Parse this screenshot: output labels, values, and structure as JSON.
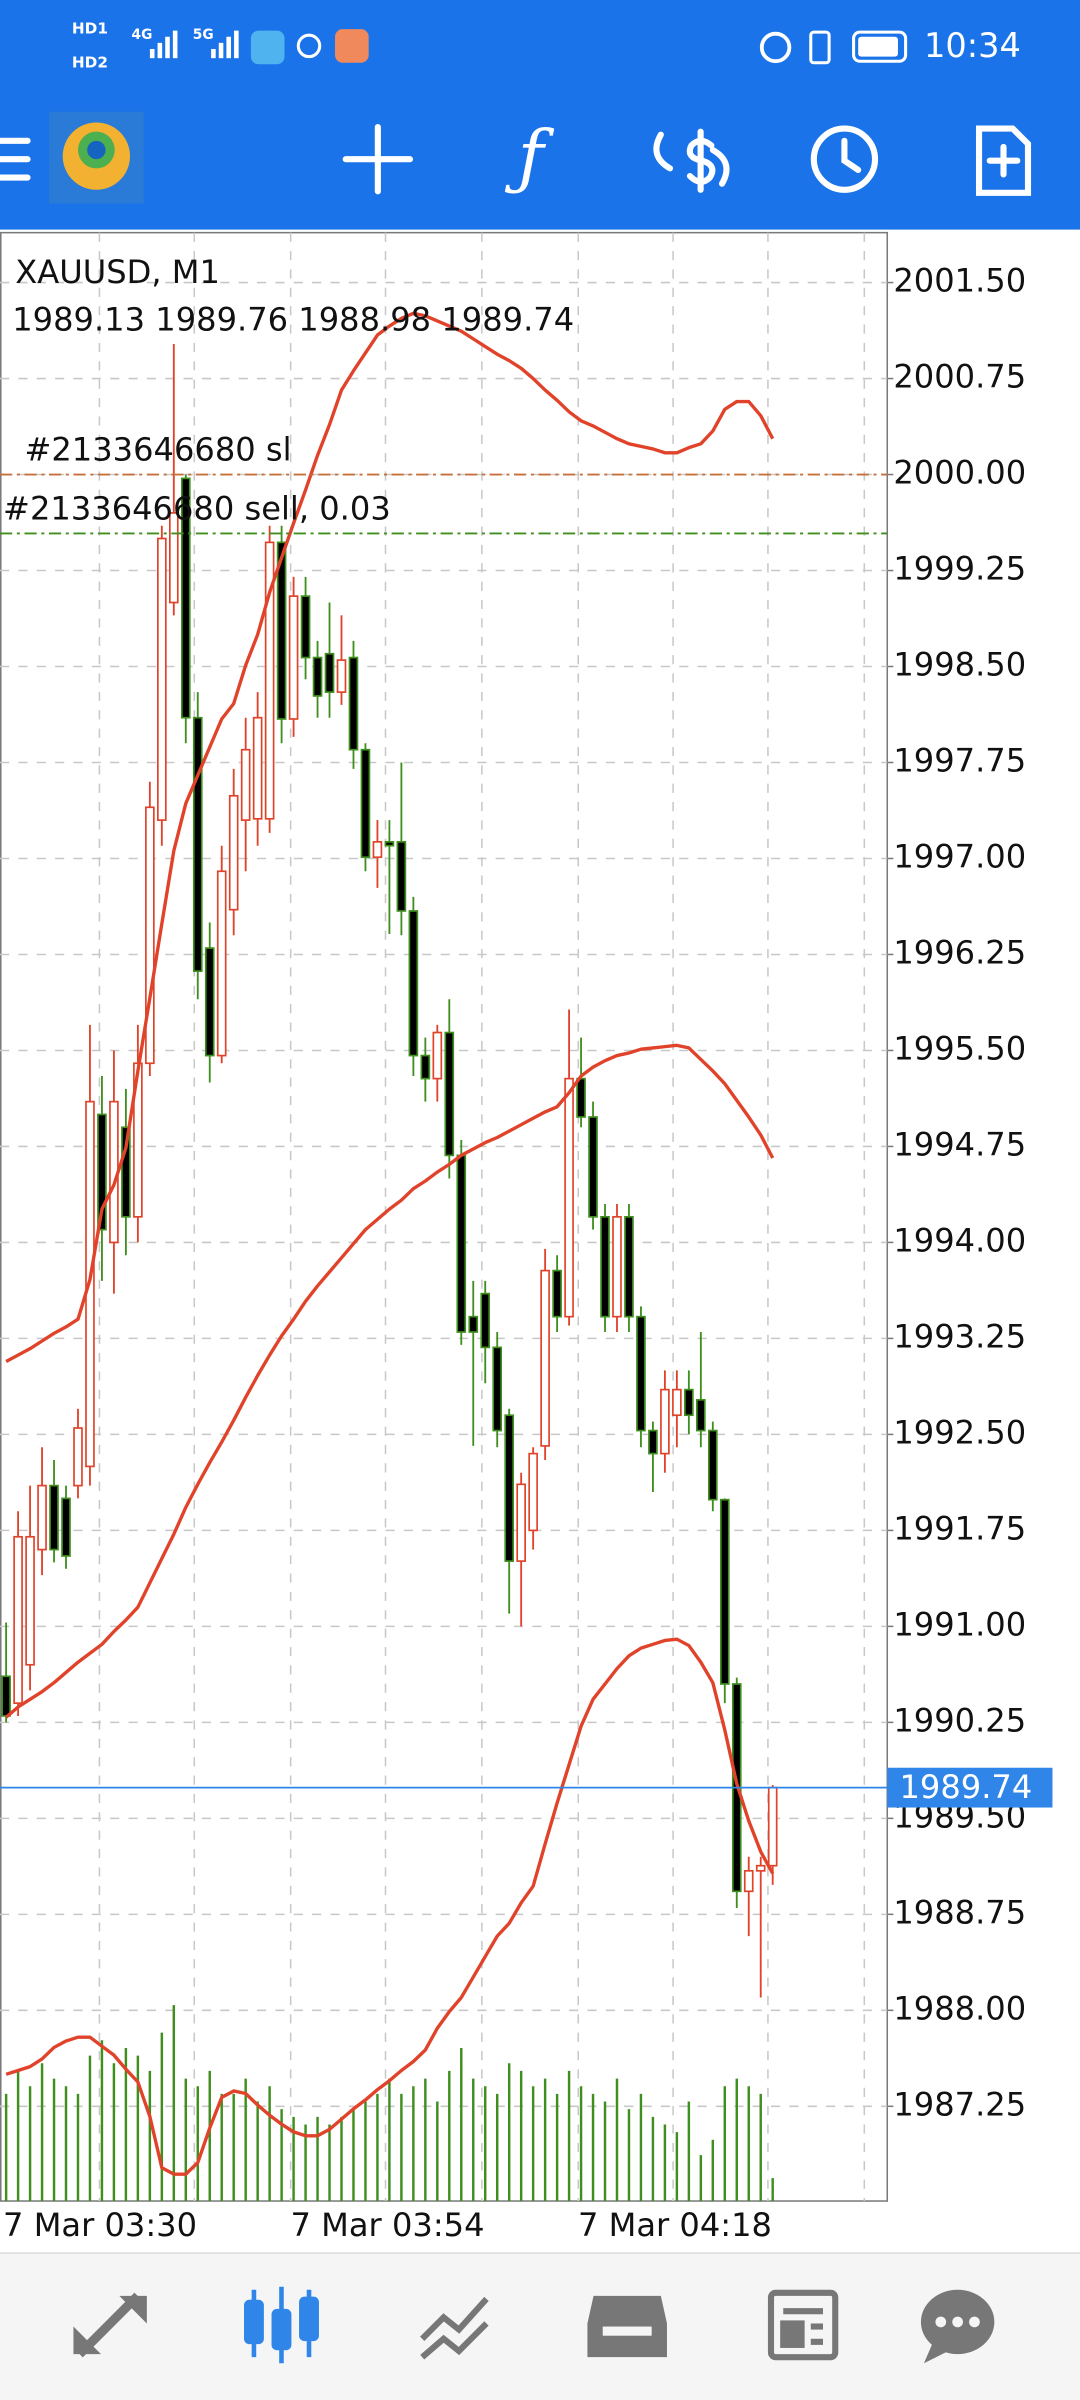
{
  "status_bar": {
    "sim_labels": [
      "HD1",
      "HD2"
    ],
    "network_labels": [
      "4G",
      "5G"
    ],
    "time": "10:34"
  },
  "chart_data": {
    "type": "candlestick",
    "title": "XAUUSD, M1",
    "x_tick_labels": [
      "7 Mar 03:30",
      "7 Mar 03:54",
      "7 Mar 04:18"
    ],
    "open": [
      1990.61,
      1990.4,
      1990.7,
      1991.6,
      1992.1,
      1992.0,
      1992.1,
      1992.25,
      1995.0,
      1994.0,
      1994.9,
      1994.2,
      1995.4,
      1997.3,
      1999.0,
      1999.97,
      1998.1,
      1996.3,
      1995.46,
      1996.6,
      1997.3,
      1997.31,
      1997.31,
      1999.47,
      1998.09,
      1999.05,
      1998.57,
      1998.6,
      1998.3,
      1998.57,
      1997.85,
      1997.01,
      1997.13,
      1997.13,
      1996.59,
      1995.46,
      1995.28,
      1995.64,
      1994.68,
      1993.42,
      1993.6,
      1993.18,
      1992.65,
      1991.51,
      1991.75,
      1992.41,
      1993.78,
      1993.42,
      1995.28,
      1994.98,
      1994.2,
      1993.42,
      1994.2,
      1993.42,
      1992.53,
      1992.35,
      1992.65,
      1992.85,
      1992.77,
      1992.53,
      1991.99,
      1990.55,
      1988.93,
      1989.09,
      1989.13
    ],
    "high": [
      1991.03,
      1991.9,
      1992.1,
      1992.4,
      1992.3,
      1992.1,
      1992.7,
      1995.7,
      1995.3,
      1995.5,
      1995.2,
      1995.7,
      1997.6,
      1999.6,
      2001.02,
      2000.0,
      1998.3,
      1996.5,
      1997.1,
      1997.7,
      1998.1,
      1998.3,
      1999.6,
      1999.6,
      1999.2,
      1999.2,
      1998.7,
      1999.0,
      1998.9,
      1998.7,
      1997.9,
      1997.3,
      1997.3,
      1997.75,
      1996.7,
      1995.6,
      1995.7,
      1995.9,
      1994.8,
      1993.7,
      1993.7,
      1993.3,
      1992.7,
      1992.2,
      1992.4,
      1993.95,
      1993.9,
      1995.82,
      1995.6,
      1995.1,
      1994.3,
      1994.3,
      1994.3,
      1993.5,
      1992.6,
      1993.0,
      1993.0,
      1993.0,
      1993.3,
      1992.6,
      1992.0,
      1990.6,
      1989.2,
      1989.2,
      1989.76
    ],
    "low": [
      1990.25,
      1990.3,
      1990.5,
      1991.4,
      1991.5,
      1991.45,
      1992.0,
      1992.1,
      1993.7,
      1993.6,
      1993.9,
      1994.0,
      1995.3,
      1997.1,
      1998.9,
      1997.9,
      1995.9,
      1995.25,
      1995.4,
      1996.4,
      1996.9,
      1997.1,
      1997.2,
      1997.9,
      1997.95,
      1998.4,
      1998.1,
      1998.1,
      1998.2,
      1997.7,
      1996.9,
      1996.77,
      1996.41,
      1996.4,
      1995.3,
      1995.1,
      1995.1,
      1994.5,
      1993.2,
      1992.41,
      1992.9,
      1992.4,
      1991.1,
      1991.0,
      1991.6,
      1992.3,
      1993.3,
      1993.35,
      1994.9,
      1994.1,
      1993.3,
      1993.3,
      1993.3,
      1992.4,
      1992.05,
      1992.2,
      1992.4,
      1992.5,
      1992.4,
      1991.9,
      1990.4,
      1988.8,
      1988.58,
      1988.1,
      1988.98
    ],
    "close": [
      1990.3,
      1991.7,
      1991.7,
      1992.1,
      1991.6,
      1991.55,
      1992.55,
      1995.1,
      1994.1,
      1995.1,
      1994.2,
      1995.4,
      1997.4,
      1999.5,
      1999.7,
      1998.1,
      1996.12,
      1995.46,
      1996.9,
      1997.49,
      1997.85,
      1998.1,
      1999.47,
      1998.09,
      1999.05,
      1998.57,
      1998.27,
      1998.3,
      1998.55,
      1997.85,
      1997.01,
      1997.13,
      1997.1,
      1996.59,
      1995.46,
      1995.28,
      1995.64,
      1994.68,
      1993.3,
      1993.3,
      1993.18,
      1992.53,
      1991.51,
      1992.11,
      1992.35,
      1993.78,
      1993.42,
      1995.28,
      1994.98,
      1994.2,
      1993.42,
      1994.2,
      1993.42,
      1992.53,
      1992.35,
      1992.85,
      1992.85,
      1992.65,
      1992.53,
      1991.99,
      1990.55,
      1988.93,
      1989.09,
      1989.13,
      1989.74
    ],
    "up_color": "#e0432a",
    "down_color": "#3f8f1f",
    "bollinger_bands": {
      "color": "#e0432a",
      "upper": [
        1993.07,
        1993.12,
        1993.17,
        1993.23,
        1993.29,
        1993.34,
        1993.4,
        1993.71,
        1994.26,
        1994.45,
        1994.74,
        1995.34,
        1995.91,
        1996.49,
        1997.06,
        1997.43,
        1997.65,
        1997.87,
        1998.09,
        1998.21,
        1998.51,
        1998.75,
        1999.08,
        1999.35,
        1999.62,
        1999.88,
        2000.15,
        2000.39,
        2000.66,
        2000.81,
        2000.95,
        2001.09,
        2001.16,
        2001.22,
        2001.26,
        2001.24,
        2001.2,
        2001.16,
        2001.12,
        2001.06,
        2001.0,
        2000.94,
        2000.89,
        2000.83,
        2000.75,
        2000.66,
        2000.58,
        2000.49,
        2000.42,
        2000.38,
        2000.33,
        2000.28,
        2000.24,
        2000.22,
        2000.2,
        2000.17,
        2000.17,
        2000.21,
        2000.24,
        2000.34,
        2000.51,
        2000.57,
        2000.57,
        2000.46,
        2000.28
      ],
      "middle": [
        1990.29,
        1990.37,
        1990.43,
        1990.49,
        1990.56,
        1990.64,
        1990.72,
        1990.79,
        1990.86,
        1990.96,
        1991.05,
        1991.15,
        1991.34,
        1991.53,
        1991.72,
        1991.93,
        1992.11,
        1992.28,
        1992.44,
        1992.61,
        1992.79,
        1992.96,
        1993.12,
        1993.27,
        1993.4,
        1993.54,
        1993.66,
        1993.77,
        1993.88,
        1993.99,
        1994.1,
        1994.18,
        1994.26,
        1994.33,
        1994.42,
        1994.48,
        1994.55,
        1994.61,
        1994.68,
        1994.73,
        1994.78,
        1994.82,
        1994.87,
        1994.92,
        1994.97,
        1995.02,
        1995.06,
        1995.17,
        1995.3,
        1995.37,
        1995.42,
        1995.46,
        1995.48,
        1995.51,
        1995.52,
        1995.53,
        1995.54,
        1995.52,
        1995.43,
        1995.34,
        1995.24,
        1995.11,
        1994.98,
        1994.84,
        1994.66
      ],
      "lower": [
        1987.5,
        1987.53,
        1987.56,
        1987.62,
        1987.71,
        1987.76,
        1987.79,
        1987.79,
        1987.72,
        1987.65,
        1987.54,
        1987.44,
        1987.17,
        1986.77,
        1986.72,
        1986.72,
        1986.81,
        1987.08,
        1987.32,
        1987.37,
        1987.35,
        1987.26,
        1987.18,
        1987.11,
        1987.05,
        1987.02,
        1987.02,
        1987.07,
        1987.15,
        1987.23,
        1987.3,
        1987.38,
        1987.45,
        1987.53,
        1987.6,
        1987.69,
        1987.86,
        1987.99,
        1988.1,
        1988.26,
        1988.42,
        1988.58,
        1988.68,
        1988.84,
        1988.97,
        1989.3,
        1989.62,
        1989.92,
        1990.22,
        1990.43,
        1990.55,
        1990.67,
        1990.77,
        1990.83,
        1990.86,
        1990.89,
        1990.9,
        1990.85,
        1990.72,
        1990.56,
        1990.19,
        1989.77,
        1989.48,
        1989.24,
        1989.07
      ]
    },
    "volume": {
      "color": "#3f8f1f",
      "ylim": [
        0,
        140
      ],
      "values": [
        70,
        85,
        75,
        90,
        80,
        75,
        70,
        95,
        105,
        90,
        100,
        95,
        85,
        110,
        128,
        80,
        75,
        85,
        70,
        70,
        80,
        65,
        75,
        60,
        55,
        50,
        55,
        50,
        55,
        60,
        65,
        70,
        80,
        70,
        75,
        80,
        65,
        85,
        100,
        80,
        75,
        70,
        90,
        85,
        75,
        80,
        70,
        85,
        75,
        70,
        65,
        80,
        60,
        70,
        55,
        50,
        45,
        65,
        30,
        40,
        75,
        80,
        75,
        70,
        15
      ]
    },
    "orders": [
      {
        "label": "#2133646680 sl",
        "price": 2000.0,
        "color": "#c8703c"
      },
      {
        "label": "#2133646680 sell, 0.03",
        "price": 1999.54,
        "color": "#3f8f1f"
      }
    ],
    "price_line_color": "#2f86e8",
    "ylim": [
      1986.51,
      2001.89
    ],
    "yticks": [
      {
        "value": 2001.5,
        "label": "2001.50"
      },
      2000.75,
      {
        "value": 2000,
        "label": "2000.00"
      },
      1999.25,
      {
        "value": 1998.5,
        "label": "1998.50"
      },
      1997.75,
      {
        "value": 1997,
        "label": "1997.00"
      },
      1996.25,
      {
        "value": 1995.5,
        "label": "1995.50"
      },
      1994.75,
      {
        "value": 1994,
        "label": "1994.00"
      },
      1993.25,
      {
        "value": 1992.5,
        "label": "1992.50"
      },
      1991.75,
      {
        "value": 1991,
        "label": "1991.00"
      },
      1990.25,
      {
        "value": 1989.5,
        "label": "1989.50"
      },
      1988.75,
      {
        "value": 1988,
        "label": "1988.00"
      },
      1987.25
    ],
    "grid": true
  }
}
